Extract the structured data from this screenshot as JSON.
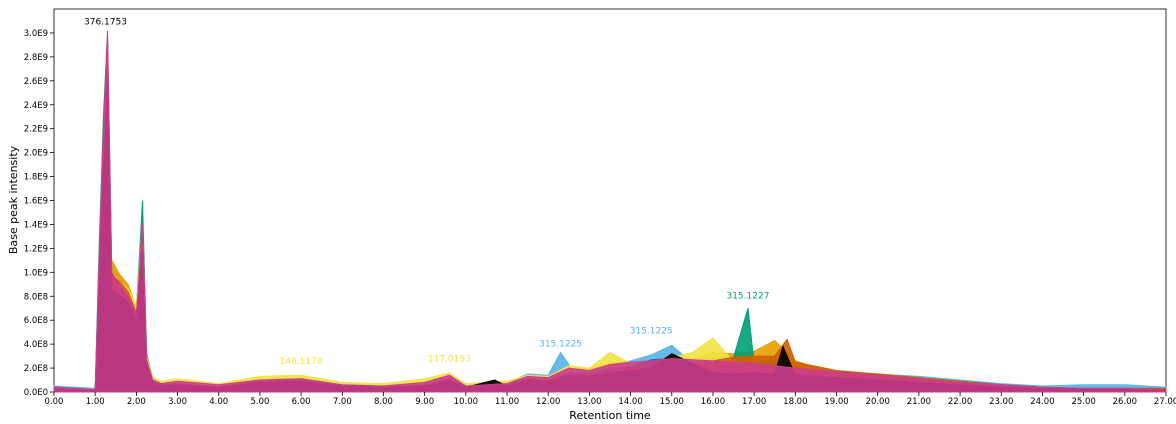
{
  "chart_data": {
    "type": "line",
    "title": "",
    "xlabel": "Retention time",
    "ylabel": "Base peak intensity",
    "xlim": [
      0,
      27.0
    ],
    "ylim": [
      0,
      3200000000.0
    ],
    "x_ticks": [
      "0.00",
      "1.00",
      "2.00",
      "3.00",
      "4.00",
      "5.00",
      "6.00",
      "7.00",
      "8.00",
      "9.00",
      "10.00",
      "11.00",
      "12.00",
      "13.00",
      "14.00",
      "15.00",
      "16.00",
      "17.00",
      "18.00",
      "19.00",
      "20.00",
      "21.00",
      "22.00",
      "23.00",
      "24.00",
      "25.00",
      "26.00",
      "27.00"
    ],
    "y_ticks": [
      {
        "value": 0.0,
        "label": "0.0E0"
      },
      {
        "value": 200000000.0,
        "label": "2.0E8"
      },
      {
        "value": 400000000.0,
        "label": "4.0E8"
      },
      {
        "value": 600000000.0,
        "label": "6.0E8"
      },
      {
        "value": 800000000.0,
        "label": "8.0E8"
      },
      {
        "value": 1000000000.0,
        "label": "1.0E9"
      },
      {
        "value": 1200000000.0,
        "label": "1.2E9"
      },
      {
        "value": 1400000000.0,
        "label": "1.4E9"
      },
      {
        "value": 1600000000.0,
        "label": "1.6E9"
      },
      {
        "value": 1800000000.0,
        "label": "1.8E9"
      },
      {
        "value": 2000000000.0,
        "label": "2.0E9"
      },
      {
        "value": 2200000000.0,
        "label": "2.2E9"
      },
      {
        "value": 2400000000.0,
        "label": "2.4E9"
      },
      {
        "value": 2600000000.0,
        "label": "2.6E9"
      },
      {
        "value": 2800000000.0,
        "label": "2.8E9"
      },
      {
        "value": 3000000000.0,
        "label": "3.0E9"
      }
    ],
    "grid": false,
    "series": [
      {
        "color": "#56b4e9",
        "x": [
          0,
          1.0,
          1.1,
          1.2,
          1.3,
          1.4,
          1.6,
          1.8,
          2.0,
          2.15,
          2.25,
          2.4,
          2.6,
          3.0,
          4.0,
          5.0,
          6.0,
          7.0,
          8.0,
          9.0,
          9.6,
          10.0,
          11.0,
          11.5,
          12.0,
          12.3,
          12.6,
          13.0,
          13.5,
          14.0,
          14.5,
          15.0,
          15.5,
          16.0,
          16.5,
          17.0,
          17.5,
          18.0,
          19.0,
          20.0,
          21.0,
          22.0,
          23.0,
          24.0,
          25.0,
          26.0,
          27.0
        ],
        "y": [
          50000000.0,
          30000000.0,
          1280000000.0,
          2200000000.0,
          2900000000.0,
          1050000000.0,
          950000000.0,
          850000000.0,
          650000000.0,
          1450000000.0,
          300000000.0,
          120000000.0,
          80000000.0,
          90000000.0,
          60000000.0,
          110000000.0,
          120000000.0,
          70000000.0,
          60000000.0,
          80000000.0,
          130000000.0,
          60000000.0,
          80000000.0,
          150000000.0,
          140000000.0,
          330000000.0,
          180000000.0,
          170000000.0,
          230000000.0,
          260000000.0,
          310000000.0,
          390000000.0,
          240000000.0,
          220000000.0,
          230000000.0,
          200000000.0,
          190000000.0,
          180000000.0,
          160000000.0,
          150000000.0,
          130000000.0,
          100000000.0,
          70000000.0,
          50000000.0,
          60000000.0,
          60000000.0,
          40000000.0
        ]
      },
      {
        "color": "#e69f00",
        "x": [
          0,
          1.0,
          1.1,
          1.2,
          1.3,
          1.4,
          1.6,
          1.8,
          2.0,
          2.15,
          2.25,
          2.4,
          2.6,
          3.0,
          4.0,
          5.0,
          6.0,
          7.0,
          8.0,
          9.0,
          9.6,
          10.0,
          11.0,
          11.5,
          12.0,
          12.5,
          13.0,
          13.5,
          14.0,
          14.5,
          15.0,
          15.5,
          16.0,
          16.5,
          17.0,
          17.5,
          18.0,
          19.0,
          20.0,
          21.0,
          22.0,
          23.0,
          24.0,
          25.0,
          26.0,
          27.0
        ],
        "y": [
          30000000.0,
          20000000.0,
          1100000000.0,
          2100000000.0,
          2850000000.0,
          1100000000.0,
          980000000.0,
          900000000.0,
          700000000.0,
          1500000000.0,
          280000000.0,
          100000000.0,
          70000000.0,
          80000000.0,
          50000000.0,
          100000000.0,
          110000000.0,
          60000000.0,
          50000000.0,
          70000000.0,
          120000000.0,
          50000000.0,
          70000000.0,
          130000000.0,
          120000000.0,
          200000000.0,
          200000000.0,
          240000000.0,
          220000000.0,
          210000000.0,
          260000000.0,
          280000000.0,
          330000000.0,
          320000000.0,
          340000000.0,
          430000000.0,
          260000000.0,
          150000000.0,
          130000000.0,
          110000000.0,
          80000000.0,
          50000000.0,
          40000000.0,
          30000000.0,
          30000000.0,
          30000000.0
        ]
      },
      {
        "color": "#009e73",
        "x": [
          0,
          1.0,
          1.1,
          1.2,
          1.3,
          1.4,
          1.6,
          1.8,
          2.0,
          2.15,
          2.25,
          2.4,
          2.6,
          3.0,
          4.0,
          5.0,
          6.0,
          7.0,
          8.0,
          9.0,
          9.6,
          10.0,
          11.0,
          11.5,
          12.0,
          12.5,
          13.0,
          13.5,
          14.0,
          14.5,
          15.0,
          15.5,
          16.0,
          16.5,
          16.85,
          17.0,
          17.5,
          18.0,
          19.0,
          20.0,
          21.0,
          22.0,
          23.0,
          24.0,
          25.0,
          26.0,
          27.0
        ],
        "y": [
          40000000.0,
          20000000.0,
          1200000000.0,
          2300000000.0,
          3000000000.0,
          1000000000.0,
          900000000.0,
          820000000.0,
          680000000.0,
          1600000000.0,
          320000000.0,
          110000000.0,
          70000000.0,
          80000000.0,
          50000000.0,
          100000000.0,
          110000000.0,
          60000000.0,
          50000000.0,
          70000000.0,
          120000000.0,
          50000000.0,
          70000000.0,
          120000000.0,
          110000000.0,
          180000000.0,
          160000000.0,
          220000000.0,
          200000000.0,
          240000000.0,
          230000000.0,
          260000000.0,
          280000000.0,
          290000000.0,
          700000000.0,
          240000000.0,
          280000000.0,
          200000000.0,
          170000000.0,
          150000000.0,
          110000000.0,
          90000000.0,
          60000000.0,
          40000000.0,
          30000000.0,
          30000000.0,
          30000000.0
        ]
      },
      {
        "color": "#f0e442",
        "x": [
          0,
          1.0,
          1.1,
          1.2,
          1.3,
          1.4,
          1.6,
          1.8,
          2.0,
          2.15,
          2.25,
          2.4,
          2.6,
          3.0,
          4.0,
          5.0,
          6.0,
          7.0,
          8.0,
          9.0,
          9.6,
          10.0,
          11.0,
          11.5,
          12.0,
          12.5,
          13.0,
          13.5,
          14.0,
          14.5,
          15.0,
          15.5,
          16.0,
          16.5,
          17.0,
          17.5,
          18.0,
          19.0,
          20.0,
          21.0,
          22.0,
          23.0,
          24.0,
          25.0,
          26.0,
          27.0
        ],
        "y": [
          30000000.0,
          20000000.0,
          1000000000.0,
          2000000000.0,
          2800000000.0,
          1000000000.0,
          920000000.0,
          860000000.0,
          720000000.0,
          1400000000.0,
          300000000.0,
          120000000.0,
          90000000.0,
          110000000.0,
          70000000.0,
          130000000.0,
          140000000.0,
          80000000.0,
          70000000.0,
          110000000.0,
          160000000.0,
          70000000.0,
          90000000.0,
          140000000.0,
          130000000.0,
          220000000.0,
          200000000.0,
          330000000.0,
          240000000.0,
          260000000.0,
          290000000.0,
          330000000.0,
          450000000.0,
          250000000.0,
          230000000.0,
          210000000.0,
          170000000.0,
          140000000.0,
          120000000.0,
          100000000.0,
          70000000.0,
          40000000.0,
          30000000.0,
          30000000.0,
          30000000.0,
          30000000.0
        ]
      },
      {
        "color": "#0072b2",
        "x": [
          0,
          1.0,
          1.1,
          1.2,
          1.3,
          1.4,
          1.6,
          1.8,
          2.0,
          2.15,
          2.25,
          2.4,
          2.6,
          3.0,
          4.0,
          5.0,
          6.0,
          7.0,
          8.0,
          9.0,
          9.6,
          10.0,
          11.0,
          11.5,
          12.0,
          12.5,
          13.0,
          13.5,
          14.0,
          14.5,
          15.0,
          15.5,
          16.0,
          16.5,
          17.0,
          17.5,
          18.0,
          19.0,
          20.0,
          21.0,
          22.0,
          23.0,
          24.0,
          25.0,
          26.0,
          27.0
        ],
        "y": [
          30000000.0,
          20000000.0,
          950000000.0,
          1900000000.0,
          2750000000.0,
          950000000.0,
          880000000.0,
          800000000.0,
          620000000.0,
          1350000000.0,
          250000000.0,
          90000000.0,
          60000000.0,
          70000000.0,
          40000000.0,
          90000000.0,
          100000000.0,
          50000000.0,
          40000000.0,
          60000000.0,
          110000000.0,
          40000000.0,
          60000000.0,
          110000000.0,
          100000000.0,
          160000000.0,
          150000000.0,
          190000000.0,
          210000000.0,
          270000000.0,
          280000000.0,
          230000000.0,
          200000000.0,
          220000000.0,
          190000000.0,
          180000000.0,
          160000000.0,
          140000000.0,
          120000000.0,
          100000000.0,
          80000000.0,
          60000000.0,
          40000000.0,
          30000000.0,
          30000000.0,
          30000000.0
        ]
      },
      {
        "color": "#d55e00",
        "x": [
          0,
          1.0,
          1.1,
          1.2,
          1.3,
          1.4,
          1.6,
          1.8,
          2.0,
          2.15,
          2.25,
          2.4,
          2.6,
          3.0,
          4.0,
          5.0,
          6.0,
          7.0,
          8.0,
          9.0,
          9.6,
          10.0,
          11.0,
          11.5,
          12.0,
          12.5,
          13.0,
          13.5,
          14.0,
          14.5,
          15.0,
          15.5,
          16.0,
          16.5,
          17.0,
          17.5,
          17.8,
          18.0,
          19.0,
          20.0,
          21.0,
          22.0,
          23.0,
          24.0,
          25.0,
          26.0,
          27.0
        ],
        "y": [
          30000000.0,
          20000000.0,
          900000000.0,
          1850000000.0,
          2700000000.0,
          980000000.0,
          920000000.0,
          840000000.0,
          660000000.0,
          1300000000.0,
          240000000.0,
          80000000.0,
          50000000.0,
          70000000.0,
          40000000.0,
          90000000.0,
          100000000.0,
          50000000.0,
          40000000.0,
          60000000.0,
          110000000.0,
          40000000.0,
          60000000.0,
          110000000.0,
          100000000.0,
          150000000.0,
          140000000.0,
          180000000.0,
          200000000.0,
          220000000.0,
          230000000.0,
          240000000.0,
          260000000.0,
          290000000.0,
          300000000.0,
          300000000.0,
          440000000.0,
          250000000.0,
          180000000.0,
          150000000.0,
          120000000.0,
          90000000.0,
          60000000.0,
          40000000.0,
          30000000.0,
          30000000.0,
          30000000.0
        ]
      },
      {
        "color": "#000000",
        "x": [
          0,
          1.0,
          1.1,
          1.2,
          1.3,
          1.4,
          1.6,
          1.8,
          2.0,
          2.15,
          2.25,
          2.4,
          2.6,
          3.0,
          4.0,
          5.0,
          6.0,
          7.0,
          8.0,
          9.0,
          9.6,
          10.0,
          10.7,
          11.0,
          11.5,
          12.0,
          12.5,
          13.0,
          13.5,
          14.0,
          14.5,
          15.0,
          15.5,
          16.0,
          16.5,
          17.0,
          17.5,
          17.7,
          18.0,
          19.0,
          20.0,
          21.0,
          22.0,
          23.0,
          24.0,
          25.0,
          26.0,
          27.0
        ],
        "y": [
          20000000.0,
          10000000.0,
          900000000.0,
          1800000000.0,
          2600000000.0,
          850000000.0,
          800000000.0,
          750000000.0,
          580000000.0,
          1200000000.0,
          220000000.0,
          80000000.0,
          50000000.0,
          60000000.0,
          40000000.0,
          80000000.0,
          90000000.0,
          50000000.0,
          40000000.0,
          50000000.0,
          100000000.0,
          40000000.0,
          100000000.0,
          50000000.0,
          100000000.0,
          90000000.0,
          140000000.0,
          130000000.0,
          160000000.0,
          180000000.0,
          200000000.0,
          320000000.0,
          240000000.0,
          160000000.0,
          150000000.0,
          160000000.0,
          150000000.0,
          380000000.0,
          140000000.0,
          120000000.0,
          100000000.0,
          80000000.0,
          60000000.0,
          40000000.0,
          30000000.0,
          20000000.0,
          20000000.0,
          20000000.0
        ]
      },
      {
        "color": "#cc3d8c",
        "x": [
          0,
          1.0,
          1.1,
          1.2,
          1.3,
          1.4,
          1.6,
          1.8,
          2.0,
          2.15,
          2.25,
          2.4,
          2.6,
          3.0,
          4.0,
          5.0,
          6.0,
          7.0,
          8.0,
          9.0,
          9.6,
          10.0,
          11.0,
          11.5,
          12.0,
          12.5,
          13.0,
          13.5,
          14.0,
          14.5,
          15.0,
          15.5,
          16.0,
          16.5,
          17.0,
          17.5,
          18.0,
          19.0,
          20.0,
          21.0,
          22.0,
          23.0,
          24.0,
          25.0,
          26.0,
          27.0
        ],
        "y": [
          40000000.0,
          20000000.0,
          1150000000.0,
          2200000000.0,
          3020000000.0,
          1000000000.0,
          900000000.0,
          800000000.0,
          650000000.0,
          1400000000.0,
          270000000.0,
          100000000.0,
          70000000.0,
          90000000.0,
          60000000.0,
          100000000.0,
          110000000.0,
          60000000.0,
          50000000.0,
          80000000.0,
          140000000.0,
          50000000.0,
          70000000.0,
          130000000.0,
          120000000.0,
          200000000.0,
          180000000.0,
          230000000.0,
          250000000.0,
          260000000.0,
          280000000.0,
          270000000.0,
          260000000.0,
          250000000.0,
          240000000.0,
          220000000.0,
          200000000.0,
          170000000.0,
          140000000.0,
          110000000.0,
          80000000.0,
          60000000.0,
          40000000.0,
          30000000.0,
          30000000.0,
          20000000.0
        ]
      }
    ],
    "annotations": [
      {
        "text": "376.1753",
        "x": 1.25,
        "y": 3020000000.0,
        "color": "#000000"
      },
      {
        "text": "146.1178",
        "x": 6.0,
        "y": 185000000.0,
        "color": "#f0e442"
      },
      {
        "text": "117.0193",
        "x": 9.6,
        "y": 205000000.0,
        "color": "#f0e442"
      },
      {
        "text": "315.1225",
        "x": 12.3,
        "y": 330000000.0,
        "color": "#56b4e9"
      },
      {
        "text": "315.1225",
        "x": 14.5,
        "y": 440000000.0,
        "color": "#56b4e9"
      },
      {
        "text": "315.1227",
        "x": 16.85,
        "y": 730000000.0,
        "color": "#009e73"
      }
    ]
  }
}
